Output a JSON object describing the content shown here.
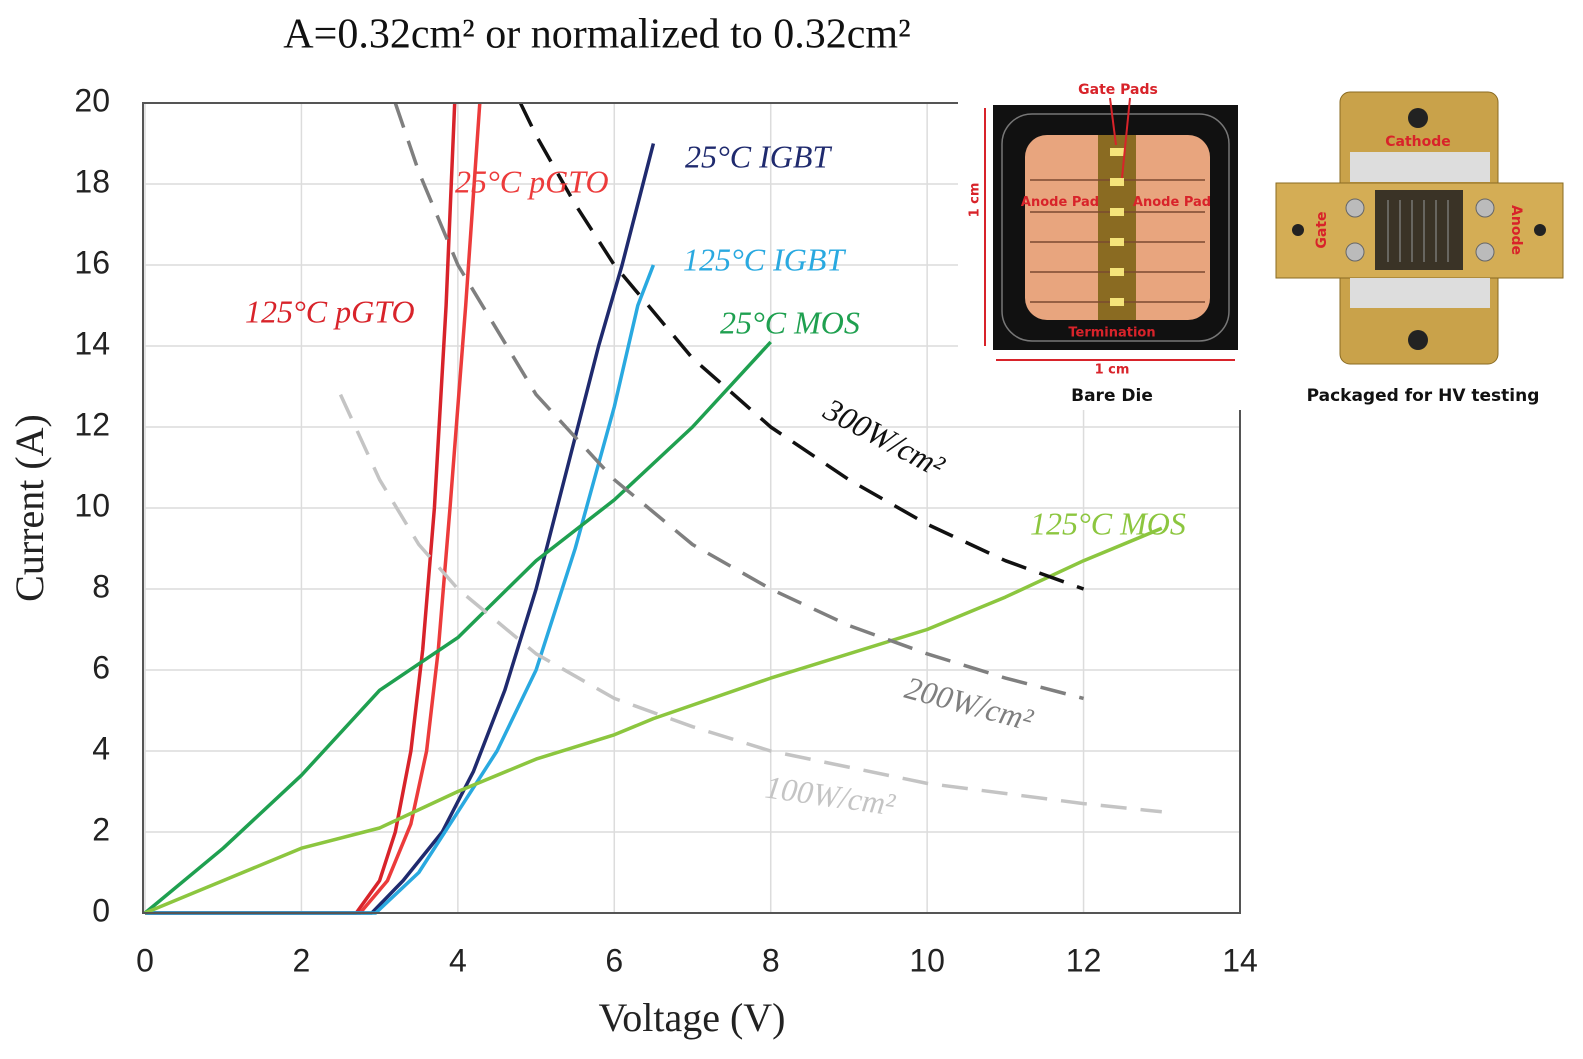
{
  "chart_data": {
    "type": "line",
    "title": "A=0.32cm² or normalized to 0.32cm²",
    "x_label": "Voltage (V)",
    "y_label": "Current (A)",
    "xlim": [
      0,
      14
    ],
    "ylim": [
      0,
      20
    ],
    "xticks": [
      0,
      2,
      4,
      6,
      8,
      10,
      12,
      14
    ],
    "yticks": [
      0,
      2,
      4,
      6,
      8,
      10,
      12,
      14,
      16,
      18,
      20
    ],
    "grid": true,
    "series": [
      {
        "name": "125°C pGTO",
        "color": "#d8232a",
        "dashed": false,
        "x": [
          0,
          2.7,
          3.0,
          3.2,
          3.4,
          3.55,
          3.7,
          3.85,
          3.96
        ],
        "values": [
          0,
          0,
          0.8,
          2,
          4,
          6.5,
          10,
          15,
          20
        ]
      },
      {
        "name": "25°C pGTO",
        "color": "#ec3b3b",
        "dashed": false,
        "x": [
          0,
          2.75,
          3.1,
          3.4,
          3.6,
          3.75,
          3.9,
          4.1,
          4.28
        ],
        "values": [
          0,
          0,
          0.8,
          2.2,
          4,
          6.5,
          10,
          15,
          20
        ]
      },
      {
        "name": "25°C IGBT",
        "color": "#1f2a6e",
        "dashed": false,
        "x": [
          0,
          2.9,
          3.3,
          3.8,
          4.2,
          4.6,
          5.0,
          5.4,
          5.8,
          6.1,
          6.5
        ],
        "values": [
          0,
          0,
          0.8,
          2,
          3.5,
          5.5,
          8,
          11,
          14,
          16,
          19
        ]
      },
      {
        "name": "125°C IGBT",
        "color": "#29a9e0",
        "dashed": false,
        "x": [
          0,
          2.95,
          3.5,
          4.0,
          4.5,
          5.0,
          5.5,
          6.0,
          6.3,
          6.5
        ],
        "values": [
          0,
          0,
          1,
          2.5,
          4,
          6,
          9,
          12.5,
          15,
          16
        ]
      },
      {
        "name": "25°C MOS",
        "color": "#1fa050",
        "dashed": false,
        "x": [
          0,
          1,
          2,
          3,
          4,
          5,
          6,
          7,
          8
        ],
        "values": [
          0,
          1.6,
          3.4,
          5.5,
          6.8,
          8.7,
          10.2,
          12,
          14.1
        ]
      },
      {
        "name": "125°C MOS",
        "color": "#8cc63f",
        "dashed": false,
        "x": [
          0,
          1,
          2,
          3,
          4,
          5,
          6,
          6.5,
          8,
          10,
          11,
          12,
          13
        ],
        "values": [
          0,
          0.8,
          1.6,
          2.1,
          3,
          3.8,
          4.4,
          4.8,
          5.8,
          7,
          7.8,
          8.7,
          9.5
        ]
      },
      {
        "name": "300W/cm²",
        "color": "#111111",
        "dashed": true,
        "x": [
          4.8,
          5,
          5.5,
          6,
          7,
          8,
          9,
          10,
          11,
          12
        ],
        "values": [
          20,
          19.2,
          17.5,
          16,
          13.7,
          12,
          10.7,
          9.6,
          8.7,
          8
        ]
      },
      {
        "name": "200W/cm²",
        "color": "#7f7f7f",
        "dashed": true,
        "x": [
          3.2,
          3.5,
          4,
          5,
          6,
          7,
          8,
          9,
          10,
          11,
          12
        ],
        "values": [
          20,
          18.3,
          16,
          12.8,
          10.7,
          9.1,
          8,
          7.1,
          6.4,
          5.8,
          5.3
        ]
      },
      {
        "name": "100W/cm²",
        "color": "#c4c4c4",
        "dashed": true,
        "x": [
          2.5,
          3,
          3.5,
          4,
          5,
          6,
          7,
          8,
          10,
          12,
          13
        ],
        "values": [
          12.8,
          10.7,
          9.1,
          8,
          6.4,
          5.3,
          4.6,
          4,
          3.2,
          2.7,
          2.5
        ]
      }
    ]
  },
  "images": {
    "bare_die": {
      "gate_pads": "Gate Pads",
      "scale_v": "1 cm",
      "anode_left": "Anode Pad",
      "anode_right": "Anode Pad",
      "termination": "Termination",
      "scale_h": "1 cm",
      "caption": "Bare Die"
    },
    "package": {
      "cathode": "Cathode",
      "gate": "Gate",
      "anode": "Anode",
      "caption": "Packaged for HV testing"
    }
  }
}
